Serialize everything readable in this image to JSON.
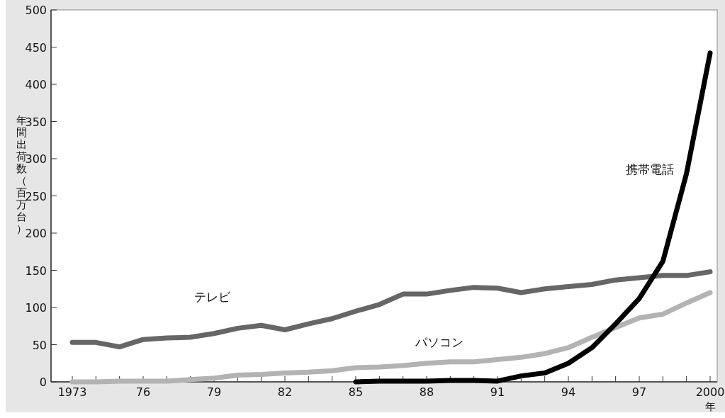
{
  "chart_data": {
    "type": "line",
    "xlabel": "年",
    "ylabel": "年間出荷数（百万台）",
    "x": [
      1973,
      1974,
      1975,
      1976,
      1977,
      1978,
      1979,
      1980,
      1981,
      1982,
      1983,
      1984,
      1985,
      1986,
      1987,
      1988,
      1989,
      1990,
      1991,
      1992,
      1993,
      1994,
      1995,
      1996,
      1997,
      1998,
      1999,
      2000
    ],
    "series": [
      {
        "name": "テレビ",
        "color": "#666666",
        "values": [
          53,
          53,
          47,
          57,
          59,
          60,
          65,
          72,
          76,
          70,
          78,
          85,
          95,
          104,
          118,
          118,
          123,
          127,
          126,
          120,
          125,
          128,
          131,
          137,
          140,
          143,
          143,
          148
        ]
      },
      {
        "name": "パソコン",
        "color": "#b3b3b3",
        "values": [
          0,
          0,
          1,
          1,
          1,
          3,
          5,
          9,
          10,
          12,
          13,
          15,
          19,
          20,
          22,
          25,
          27,
          27,
          30,
          33,
          38,
          46,
          60,
          73,
          86,
          91,
          106,
          120
        ]
      },
      {
        "name": "携帯電話",
        "color": "#000000",
        "values": [
          null,
          null,
          null,
          null,
          null,
          null,
          null,
          null,
          null,
          null,
          null,
          null,
          0,
          1,
          1,
          1,
          2,
          2,
          1,
          8,
          12,
          25,
          46,
          78,
          112,
          162,
          280,
          442
        ]
      }
    ],
    "xlim": [
      1972.1,
      2000.3
    ],
    "xticks": [
      {
        "value": 1973,
        "label": "1973"
      },
      {
        "value": 1974,
        "label": null
      },
      {
        "value": 1975,
        "label": null
      },
      {
        "value": 1976,
        "label": "76"
      },
      {
        "value": 1977,
        "label": null
      },
      {
        "value": 1978,
        "label": null
      },
      {
        "value": 1979,
        "label": "79"
      },
      {
        "value": 1980,
        "label": null
      },
      {
        "value": 1981,
        "label": null
      },
      {
        "value": 1982,
        "label": "82"
      },
      {
        "value": 1983,
        "label": null
      },
      {
        "value": 1984,
        "label": null
      },
      {
        "value": 1985,
        "label": "85"
      },
      {
        "value": 1986,
        "label": null
      },
      {
        "value": 1987,
        "label": null
      },
      {
        "value": 1988,
        "label": "88"
      },
      {
        "value": 1989,
        "label": null
      },
      {
        "value": 1990,
        "label": null
      },
      {
        "value": 1991,
        "label": "91"
      },
      {
        "value": 1992,
        "label": null
      },
      {
        "value": 1993,
        "label": null
      },
      {
        "value": 1994,
        "label": "94"
      },
      {
        "value": 1995,
        "label": null
      },
      {
        "value": 1996,
        "label": null
      },
      {
        "value": 1997,
        "label": "97"
      },
      {
        "value": 1998,
        "label": null
      },
      {
        "value": 1999,
        "label": null
      },
      {
        "value": 2000,
        "label": "2000"
      }
    ],
    "ylim": [
      0,
      500
    ],
    "yticks": [
      0,
      50,
      100,
      150,
      200,
      250,
      300,
      350,
      400,
      450,
      500
    ],
    "grid": false,
    "legend": false,
    "marker": "none",
    "line_style": "solid"
  }
}
